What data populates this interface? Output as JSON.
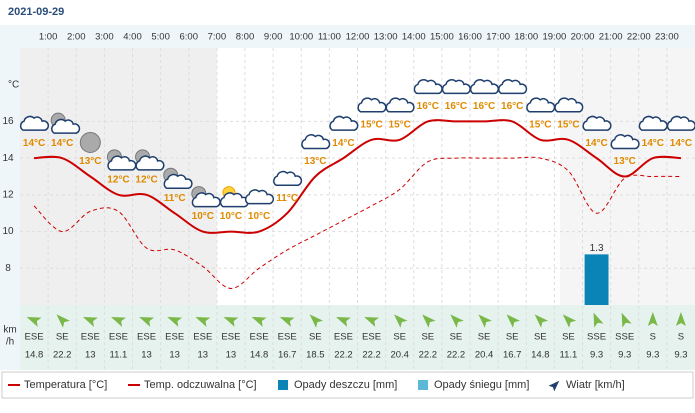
{
  "chart_data": {
    "type": "line",
    "title": "2021-09-29",
    "y_unit_label": "°C",
    "xlim": [
      0,
      24
    ],
    "xticks": [
      {
        "value": 1,
        "label": "1:00"
      },
      {
        "value": 2,
        "label": "2:00"
      },
      {
        "value": 3,
        "label": "3:00"
      },
      {
        "value": 4,
        "label": "4:00"
      },
      {
        "value": 5,
        "label": "5:00"
      },
      {
        "value": 6,
        "label": "6:00"
      },
      {
        "value": 7,
        "label": "7:00"
      },
      {
        "value": 8,
        "label": "8:00"
      },
      {
        "value": 9,
        "label": "9:00"
      },
      {
        "value": 10,
        "label": "10:00"
      },
      {
        "value": 11,
        "label": "11:00"
      },
      {
        "value": 12,
        "label": "12:00"
      },
      {
        "value": 13,
        "label": "13:00"
      },
      {
        "value": 14,
        "label": "14:00"
      },
      {
        "value": 15,
        "label": "15:00"
      },
      {
        "value": 16,
        "label": "16:00"
      },
      {
        "value": 17,
        "label": "17:00"
      },
      {
        "value": 18,
        "label": "18:00"
      },
      {
        "value": 19,
        "label": "19:00"
      },
      {
        "value": 20,
        "label": "20:00"
      },
      {
        "value": 21,
        "label": "21:00"
      },
      {
        "value": 22,
        "label": "22:00"
      },
      {
        "value": 23,
        "label": "23:00"
      }
    ],
    "x": [
      0.5,
      1.5,
      2.5,
      3.5,
      4.5,
      5.5,
      6.5,
      7.5,
      8.5,
      9.5,
      10.5,
      11.5,
      12.5,
      13.5,
      14.5,
      15.5,
      16.5,
      17.5,
      18.5,
      19.5,
      20.5,
      21.5,
      22.5,
      23.5
    ],
    "ylim": [
      6,
      20
    ],
    "yticks": [
      8,
      10,
      12,
      14,
      16
    ],
    "y2lim": [
      0,
      6.6
    ],
    "grid": true,
    "series": [
      {
        "name": "Temperatura [°C]",
        "color": "#cc0000",
        "values": [
          14,
          14,
          13,
          12,
          12,
          11,
          10,
          10,
          10,
          11,
          13,
          14,
          15,
          15,
          16,
          16,
          16,
          16,
          15,
          15,
          14,
          13,
          14,
          14
        ],
        "value_labels": [
          "14°C",
          "14°C",
          "13°C",
          "12°C",
          "12°C",
          "11°C",
          "10°C",
          "10°C",
          "10°C",
          "11°C",
          "13°C",
          "14°C",
          "15°C",
          "15°C",
          "16°C",
          "16°C",
          "16°C",
          "16°C",
          "15°C",
          "15°C",
          "14°C",
          "13°C",
          "14°C",
          "14°C"
        ]
      },
      {
        "name": "Temp. odczuwalna [°C]",
        "color": "#cc0000",
        "dashed": true,
        "values": [
          11.4,
          10,
          11.1,
          11.1,
          9.1,
          9,
          8.1,
          6.9,
          8,
          9,
          9.8,
          10.6,
          11.4,
          12.3,
          13.8,
          14,
          14,
          14,
          14,
          13.3,
          11,
          12.9,
          13,
          13
        ]
      },
      {
        "name": "Opady deszczu [mm]",
        "type": "bar",
        "axis": "y2",
        "color": "#0a84b7",
        "values": [
          0,
          0,
          0,
          0,
          0,
          0,
          0,
          0,
          0,
          0,
          0,
          0,
          0,
          0,
          0,
          0,
          0,
          0,
          0,
          0,
          1.3,
          0,
          0,
          0
        ]
      },
      {
        "name": "Opady śniegu [mm]",
        "type": "bar",
        "axis": "y2",
        "color": "#5bb8d6",
        "values": [
          0,
          0,
          0,
          0,
          0,
          0,
          0,
          0,
          0,
          0,
          0,
          0,
          0,
          0,
          0,
          0,
          0,
          0,
          0,
          0,
          0,
          0,
          0,
          0
        ]
      }
    ],
    "wind": {
      "name": "Wiatr [km/h]",
      "unit_label": [
        "km",
        "/h"
      ],
      "directions": [
        "ESE",
        "SE",
        "ESE",
        "ESE",
        "ESE",
        "ESE",
        "ESE",
        "ESE",
        "ESE",
        "ESE",
        "SE",
        "ESE",
        "ESE",
        "SE",
        "SE",
        "SE",
        "SE",
        "SE",
        "SE",
        "SE",
        "SSE",
        "SSE",
        "S",
        "S"
      ],
      "speeds": [
        14.8,
        22.2,
        13,
        11.1,
        13,
        13,
        13,
        13,
        14.8,
        16.7,
        18.5,
        22.2,
        22.2,
        20.4,
        22.2,
        22.2,
        20.4,
        16.7,
        14.8,
        11.1,
        9.3,
        9.3,
        9.3,
        9.3
      ]
    }
  }
}
